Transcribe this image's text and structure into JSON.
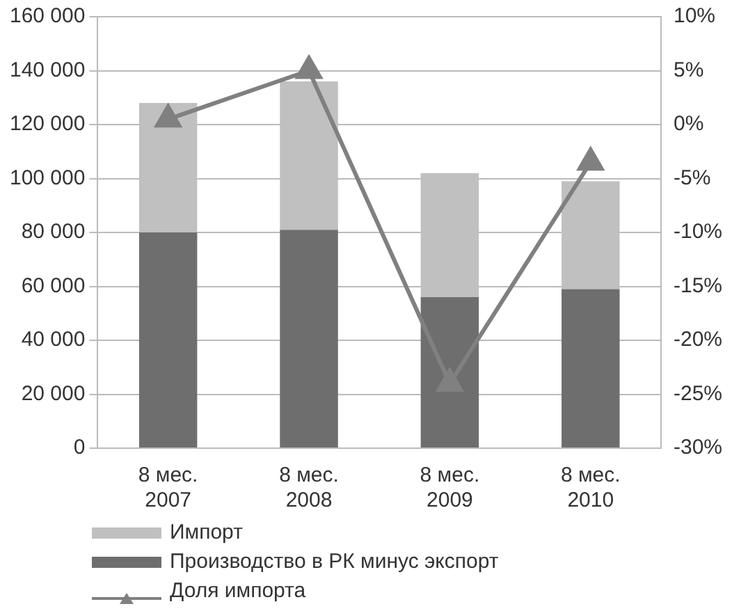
{
  "chart_data": {
    "type": "bar",
    "stacked": true,
    "categories": [
      "8 мес. 2007",
      "8 мес. 2008",
      "8 мес. 2009",
      "8 мес. 2010"
    ],
    "series": [
      {
        "name": "Производство в РК минус экспорт",
        "color": "#6e6e6e",
        "values": [
          80000,
          81000,
          56000,
          59000
        ]
      },
      {
        "name": "Импорт",
        "color": "#c0c0c0",
        "values": [
          48000,
          55000,
          46000,
          40000
        ]
      },
      {
        "name": "Доля импорта",
        "type": "line",
        "axis": "y2",
        "color": "#808080",
        "marker": "triangle",
        "values": [
          0.5,
          5,
          -24,
          -3.5
        ]
      }
    ],
    "ylim": [
      0,
      160000
    ],
    "yticks": [
      {
        "value": 0,
        "label": "0"
      },
      {
        "value": 20000,
        "label": "20 000"
      },
      {
        "value": 40000,
        "label": "40 000"
      },
      {
        "value": 60000,
        "label": "60 000"
      },
      {
        "value": 80000,
        "label": "80 000"
      },
      {
        "value": 100000,
        "label": "100 000"
      },
      {
        "value": 120000,
        "label": "120 000"
      },
      {
        "value": 140000,
        "label": "140 000"
      },
      {
        "value": 160000,
        "label": "160 000"
      }
    ],
    "y2lim": [
      -30,
      10
    ],
    "y2ticks": [
      {
        "value": -30,
        "label": "-30%"
      },
      {
        "value": -25,
        "label": "-25%"
      },
      {
        "value": -20,
        "label": "-20%"
      },
      {
        "value": -15,
        "label": "-15%"
      },
      {
        "value": -10,
        "label": "-10%"
      },
      {
        "value": -5,
        "label": "-5%"
      },
      {
        "value": 0,
        "label": "0%"
      },
      {
        "value": 5,
        "label": "5%"
      },
      {
        "value": 10,
        "label": "10%"
      }
    ],
    "grid": "y",
    "legend": "bottom"
  }
}
